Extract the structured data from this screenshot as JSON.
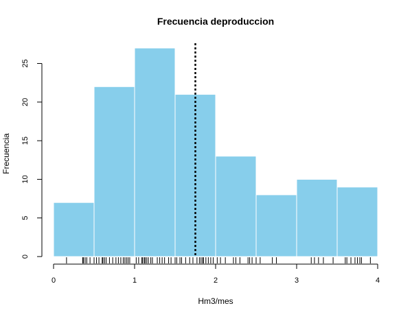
{
  "chart_data": {
    "type": "bar",
    "title": "Frecuencia deproduccion",
    "xlabel": "Hm3/mes",
    "ylabel": "Frecuencia",
    "bin_edges": [
      0,
      0.5,
      1,
      1.5,
      2,
      2.5,
      3,
      3.5,
      4
    ],
    "values": [
      7,
      22,
      27,
      21,
      13,
      8,
      10,
      9
    ],
    "xlim": [
      0,
      4
    ],
    "ylim": [
      0,
      27
    ],
    "x_ticks": [
      0,
      1,
      2,
      3,
      4
    ],
    "y_ticks": [
      0,
      5,
      10,
      15,
      20,
      25
    ],
    "reference_line_x": 1.75,
    "rug_values": [
      0.16,
      0.36,
      0.37,
      0.39,
      0.41,
      0.45,
      0.5,
      0.53,
      0.56,
      0.6,
      0.61,
      0.63,
      0.65,
      0.69,
      0.73,
      0.77,
      0.8,
      0.83,
      0.86,
      0.88,
      0.9,
      0.92,
      0.94,
      1.02,
      1.05,
      1.09,
      1.1,
      1.12,
      1.13,
      1.15,
      1.17,
      1.2,
      1.22,
      1.28,
      1.31,
      1.34,
      1.37,
      1.42,
      1.45,
      1.5,
      1.52,
      1.56,
      1.58,
      1.63,
      1.68,
      1.72,
      1.77,
      1.8,
      1.82,
      1.84,
      1.85,
      1.88,
      1.91,
      1.94,
      1.97,
      2.02,
      2.06,
      2.12,
      2.22,
      2.25,
      2.3,
      2.4,
      2.42,
      2.45,
      2.5,
      2.55,
      2.7,
      2.75,
      3.18,
      3.22,
      3.27,
      3.33,
      3.45,
      3.6,
      3.62,
      3.67,
      3.72,
      3.75,
      3.78,
      3.8,
      3.91
    ],
    "bar_color": "#87CEEB",
    "bar_edge_color": "#ffffff",
    "reference_line_color": "#000000",
    "grid": false
  }
}
